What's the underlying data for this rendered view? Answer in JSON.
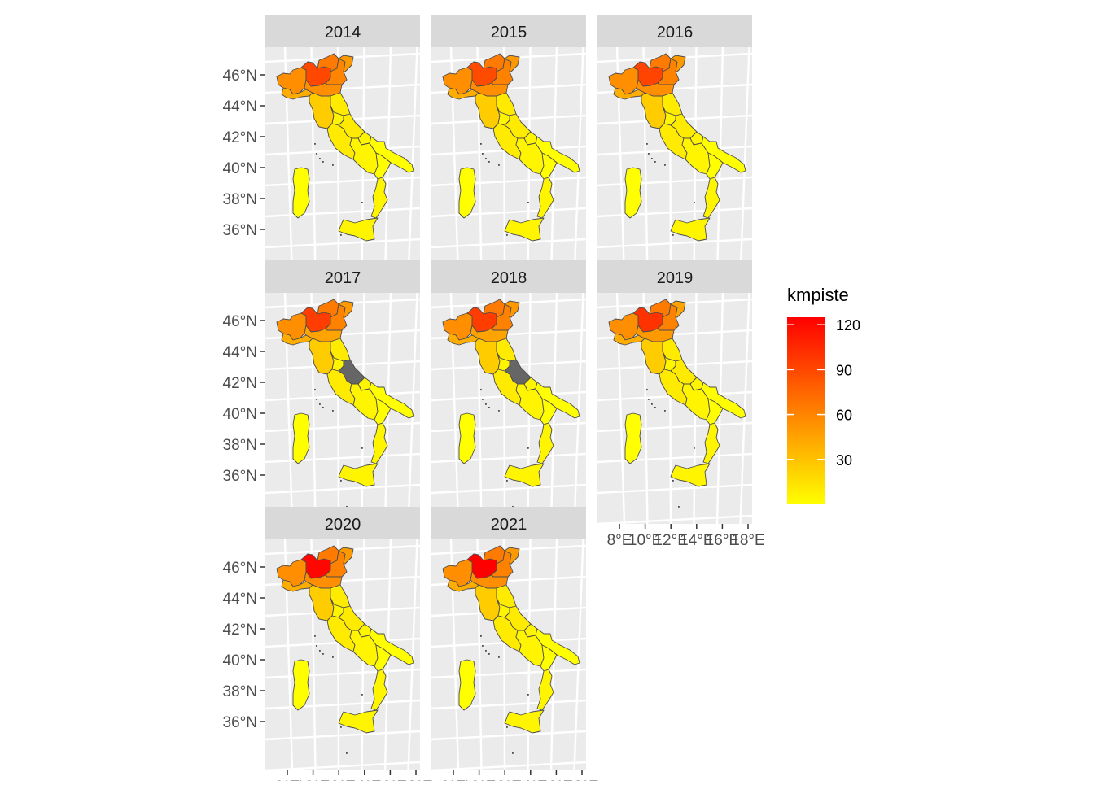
{
  "chart_data": {
    "type": "choropleth-facet",
    "fill_variable": "kmpiste",
    "facets": [
      "2014",
      "2015",
      "2016",
      "2017",
      "2018",
      "2019",
      "2020",
      "2021"
    ],
    "y_ticks": [
      "46°N",
      "44°N",
      "42°N",
      "40°N",
      "38°N",
      "36°N"
    ],
    "x_ticks": [
      "8°E",
      "10°E",
      "12°E",
      "14°E",
      "16°E",
      "18°E"
    ],
    "legend": {
      "title": "kmpiste",
      "ticks": [
        "120",
        "90",
        "60",
        "30"
      ],
      "range": [
        0,
        125
      ],
      "colors": [
        "#FFFF00",
        "#FF0000"
      ],
      "placement": "right"
    },
    "na_color": "#666666",
    "region_values": {
      "2014": {
        "Piemonte": 55,
        "Lombardia": 90,
        "Trentino": 65,
        "Veneto": 60,
        "Friuli": 50,
        "Liguria": 40,
        "Emilia": 55,
        "Toscana": 25,
        "Umbria": 5,
        "Marche": 10,
        "Lazio": 10,
        "Abruzzo": 10,
        "Molise": 5,
        "Campania": 5,
        "Puglia": 0,
        "Basilicata": 0,
        "Calabria": 5,
        "Sicilia": 5,
        "Sardegna": 0
      },
      "2015": {
        "Piemonte": 55,
        "Lombardia": 88,
        "Trentino": 65,
        "Veneto": 62,
        "Friuli": 50,
        "Liguria": 40,
        "Emilia": 55,
        "Toscana": 25,
        "Umbria": 5,
        "Marche": 10,
        "Lazio": 10,
        "Abruzzo": 10,
        "Molise": 5,
        "Campania": 5,
        "Puglia": 0,
        "Basilicata": 0,
        "Calabria": 5,
        "Sicilia": 5,
        "Sardegna": 0
      },
      "2016": {
        "Piemonte": 55,
        "Lombardia": 92,
        "Trentino": 65,
        "Veneto": 62,
        "Friuli": 50,
        "Liguria": 40,
        "Emilia": 55,
        "Toscana": 25,
        "Umbria": 5,
        "Marche": 10,
        "Lazio": 10,
        "Abruzzo": 10,
        "Molise": 5,
        "Campania": 5,
        "Puglia": 0,
        "Basilicata": 0,
        "Calabria": 5,
        "Sicilia": 5,
        "Sardegna": 0
      },
      "2017": {
        "Piemonte": 55,
        "Lombardia": 95,
        "Trentino": 65,
        "Veneto": 62,
        "Friuli": 50,
        "Liguria": 40,
        "Emilia": 45,
        "Toscana": 25,
        "Umbria": 5,
        "Marche": 10,
        "Lazio": 10,
        "Abruzzo": null,
        "Molise": 5,
        "Campania": 5,
        "Puglia": 0,
        "Basilicata": 0,
        "Calabria": 5,
        "Sicilia": 5,
        "Sardegna": 0
      },
      "2018": {
        "Piemonte": 55,
        "Lombardia": 95,
        "Trentino": 65,
        "Veneto": 62,
        "Friuli": 50,
        "Liguria": 40,
        "Emilia": 45,
        "Toscana": 25,
        "Umbria": 5,
        "Marche": 10,
        "Lazio": 10,
        "Abruzzo": null,
        "Molise": 5,
        "Campania": 5,
        "Puglia": 0,
        "Basilicata": 0,
        "Calabria": 5,
        "Sicilia": 5,
        "Sardegna": 0
      },
      "2019": {
        "Piemonte": 55,
        "Lombardia": 100,
        "Trentino": 65,
        "Veneto": 62,
        "Friuli": 45,
        "Liguria": 40,
        "Emilia": 50,
        "Toscana": 25,
        "Umbria": 5,
        "Marche": 10,
        "Lazio": 10,
        "Abruzzo": 10,
        "Molise": 5,
        "Campania": 5,
        "Puglia": 0,
        "Basilicata": 0,
        "Calabria": 5,
        "Sicilia": 5,
        "Sardegna": 0
      },
      "2020": {
        "Piemonte": 55,
        "Lombardia": 122,
        "Trentino": 65,
        "Veneto": 62,
        "Friuli": 50,
        "Liguria": 40,
        "Emilia": 55,
        "Toscana": 25,
        "Umbria": 5,
        "Marche": 10,
        "Lazio": 10,
        "Abruzzo": 10,
        "Molise": 5,
        "Campania": 5,
        "Puglia": 0,
        "Basilicata": 0,
        "Calabria": 5,
        "Sicilia": 5,
        "Sardegna": 0
      },
      "2021": {
        "Piemonte": 55,
        "Lombardia": 125,
        "Trentino": 65,
        "Veneto": 62,
        "Friuli": 50,
        "Liguria": 40,
        "Emilia": 55,
        "Toscana": 25,
        "Umbria": 5,
        "Marche": 10,
        "Lazio": 10,
        "Abruzzo": 10,
        "Molise": 5,
        "Campania": 5,
        "Puglia": 0,
        "Basilicata": 0,
        "Calabria": 5,
        "Sicilia": 5,
        "Sardegna": 0
      }
    }
  }
}
